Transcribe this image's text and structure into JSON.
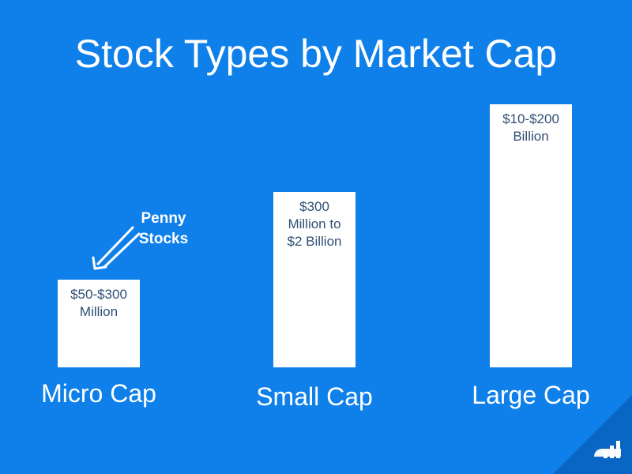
{
  "chart_data": {
    "type": "bar",
    "title": "Stock Types by Market Cap",
    "categories": [
      "Micro Cap",
      "Small Cap",
      "Large Cap"
    ],
    "values": [
      1,
      2,
      3
    ],
    "data_labels": [
      "$50-$300\nMillion",
      "$300\nMillion to\n$2 Billion",
      "$10-$200\nBillion"
    ],
    "ylim": [
      0,
      3
    ],
    "annotations": [
      {
        "text": "Penny\nStocks",
        "target": "Micro Cap"
      }
    ],
    "grid": false,
    "legend": "none"
  },
  "colors": {
    "background": "#0f80ea",
    "bar": "#ffffff",
    "bar_text": "#2f4f74",
    "text": "#ffffff"
  },
  "icons": [
    "arrow-icon",
    "logo-icon"
  ]
}
